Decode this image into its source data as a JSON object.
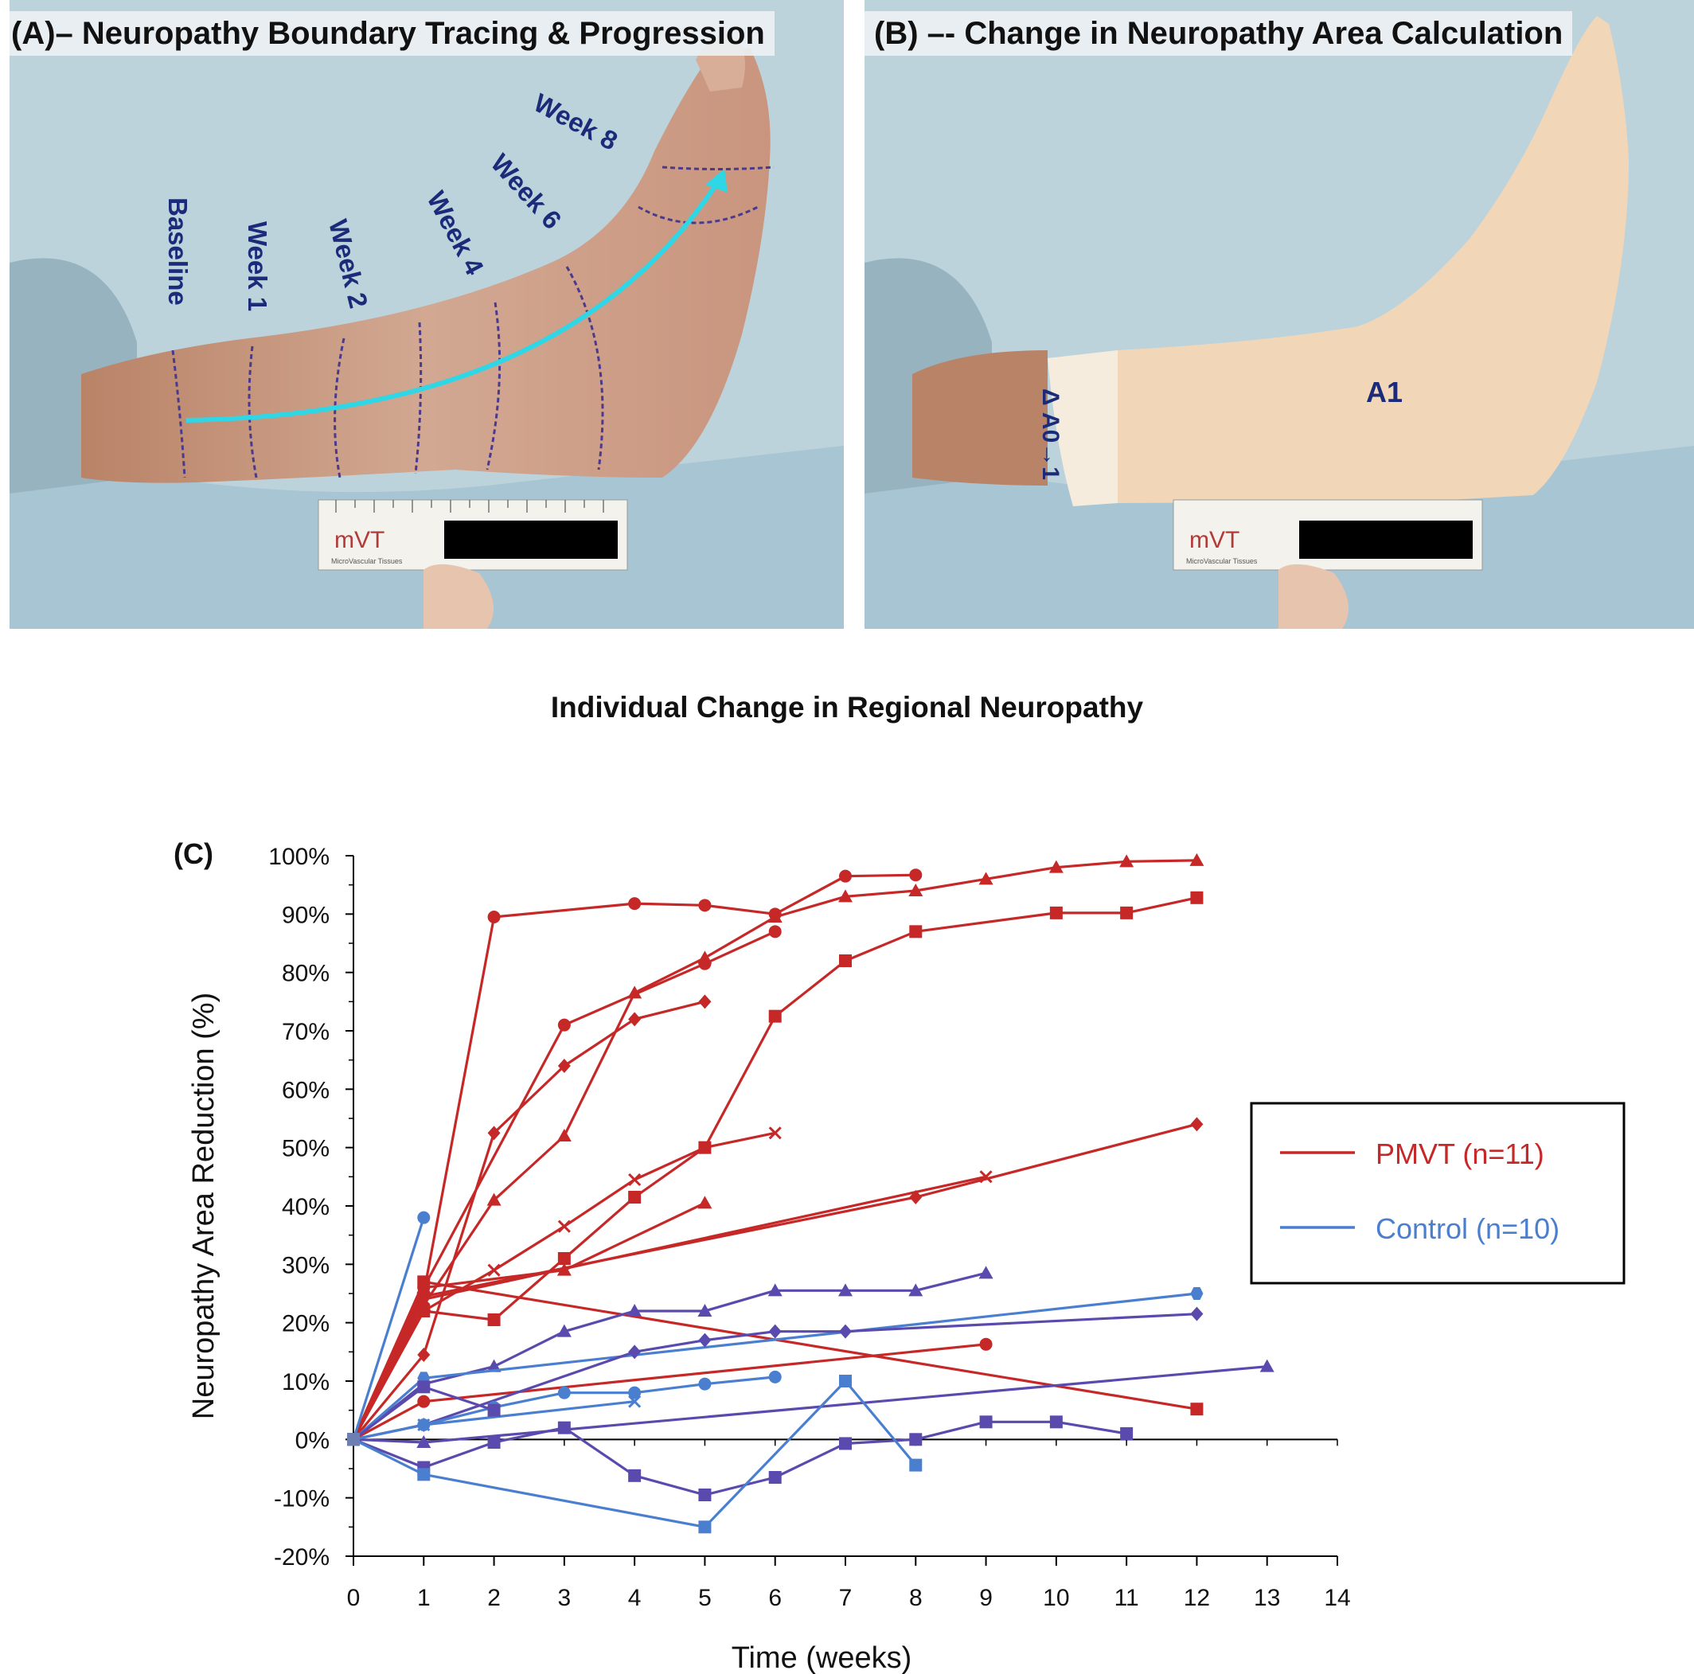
{
  "panel_a": {
    "title": "(A)– Neuropathy Boundary Tracing & Progression",
    "labels": [
      "Baseline",
      "Week 1",
      "Week 2",
      "Week 4",
      "Week 6",
      "Week 8"
    ],
    "ruler_brand": "mVT",
    "ruler_sub": "MicroVascular Tissues"
  },
  "panel_b": {
    "title": "(B) –- Change in Neuropathy Area Calculation",
    "delta_label": "Δ A0→1",
    "area_label": "A1",
    "ruler_brand": "mVT",
    "ruler_sub": "MicroVascular Tissues"
  },
  "colors": {
    "pmvt": "#c62828",
    "control": "#4a7fd0",
    "control_alt": "#5a4aae",
    "arrow": "#2fd6e6"
  },
  "chart_data": {
    "type": "line",
    "title": "Individual Change in Regional Neuropathy",
    "panel_label": "(C)",
    "xlabel": "Time (weeks)",
    "ylabel": "Neuropathy Area Reduction (%)",
    "xlim": [
      0,
      14
    ],
    "ylim": [
      -20,
      100
    ],
    "xticks": [
      0,
      1,
      2,
      3,
      4,
      5,
      6,
      7,
      8,
      9,
      10,
      11,
      12,
      13,
      14
    ],
    "yticks": [
      -20,
      -10,
      0,
      10,
      20,
      30,
      40,
      50,
      60,
      70,
      80,
      90,
      100
    ],
    "ytick_labels": [
      "-20%",
      "-10%",
      "0%",
      "10%",
      "20%",
      "30%",
      "40%",
      "50%",
      "60%",
      "70%",
      "80%",
      "90%",
      "100%"
    ],
    "grid": false,
    "legend": {
      "position": "right",
      "entries": [
        {
          "label": "PMVT (n=11)",
          "color": "#c62828"
        },
        {
          "label": "Control (n=10)",
          "color": "#4a7fd0"
        }
      ]
    },
    "series": [
      {
        "group": "PMVT",
        "marker": "circle",
        "x": [
          0,
          1,
          2,
          4,
          5,
          6,
          7,
          8
        ],
        "y": [
          0,
          25,
          89.5,
          91.8,
          91.5,
          90,
          96.5,
          96.7
        ]
      },
      {
        "group": "PMVT",
        "marker": "triangle",
        "x": [
          0,
          1,
          2,
          3,
          4,
          5,
          6,
          7,
          8,
          9,
          10,
          11,
          12
        ],
        "y": [
          0,
          23,
          41,
          52,
          76.5,
          82.5,
          89.5,
          93,
          94,
          96,
          98,
          99,
          99.2
        ]
      },
      {
        "group": "PMVT",
        "marker": "square",
        "x": [
          0,
          1,
          2,
          3,
          4,
          5,
          6,
          7,
          8,
          10,
          11,
          12
        ],
        "y": [
          0,
          22,
          20.5,
          31,
          41.5,
          50,
          72.5,
          82,
          87,
          90.2,
          90.2,
          92.8
        ]
      },
      {
        "group": "PMVT",
        "marker": "circle",
        "x": [
          0,
          1,
          3,
          5,
          6
        ],
        "y": [
          0,
          26,
          71,
          81.5,
          87
        ]
      },
      {
        "group": "PMVT",
        "marker": "diamond",
        "x": [
          0,
          1,
          2,
          3,
          4,
          5
        ],
        "y": [
          0,
          14.5,
          52.5,
          64,
          72,
          75
        ]
      },
      {
        "group": "PMVT",
        "marker": "x",
        "x": [
          0,
          1,
          2,
          3,
          4,
          5,
          6
        ],
        "y": [
          0,
          22,
          29,
          36.5,
          44.5,
          50,
          52.5
        ]
      },
      {
        "group": "PMVT",
        "marker": "triangle",
        "x": [
          0,
          1,
          3,
          5
        ],
        "y": [
          0,
          26,
          29,
          40.5
        ]
      },
      {
        "group": "PMVT",
        "marker": "diamond",
        "x": [
          0,
          1,
          8,
          12
        ],
        "y": [
          0,
          24.5,
          41.5,
          54
        ]
      },
      {
        "group": "PMVT",
        "marker": "x",
        "x": [
          0,
          1,
          9
        ],
        "y": [
          0,
          24,
          45
        ]
      },
      {
        "group": "PMVT",
        "marker": "circle",
        "x": [
          0,
          1,
          9
        ],
        "y": [
          0,
          6.5,
          16.3
        ]
      },
      {
        "group": "PMVT",
        "marker": "square",
        "x": [
          0,
          1,
          12
        ],
        "y": [
          0,
          27,
          5.2
        ]
      },
      {
        "group": "Control",
        "marker": "circle",
        "x": [
          0,
          1
        ],
        "y": [
          0,
          38
        ]
      },
      {
        "group": "Control",
        "marker": "triangle",
        "x": [
          0,
          1,
          2,
          3,
          4,
          5,
          6,
          7,
          8,
          9
        ],
        "y": [
          0,
          9.5,
          12.5,
          18.5,
          22,
          22,
          25.5,
          25.5,
          25.5,
          28.5
        ]
      },
      {
        "group": "Control",
        "marker": "hexagon",
        "x": [
          0,
          1,
          12
        ],
        "y": [
          0,
          10.5,
          25
        ]
      },
      {
        "group": "Control",
        "marker": "diamond",
        "x": [
          0,
          1,
          4,
          5,
          6,
          7,
          12
        ],
        "y": [
          0,
          2.5,
          15,
          17,
          18.5,
          18.5,
          21.5
        ]
      },
      {
        "group": "Control",
        "marker": "circle",
        "x": [
          0,
          1,
          2,
          3,
          4,
          5,
          6
        ],
        "y": [
          0,
          2.5,
          5.5,
          8,
          8,
          9.5,
          10.7
        ]
      },
      {
        "group": "Control",
        "marker": "triangle",
        "x": [
          0,
          1,
          13
        ],
        "y": [
          0,
          -0.5,
          12.5
        ]
      },
      {
        "group": "Control",
        "marker": "x",
        "x": [
          0,
          1,
          4
        ],
        "y": [
          0,
          2.5,
          6.5
        ]
      },
      {
        "group": "Control",
        "marker": "square",
        "x": [
          0,
          1,
          2,
          3,
          4,
          5,
          6,
          7,
          8,
          9,
          10,
          11
        ],
        "y": [
          0,
          -4.8,
          -0.5,
          2,
          -6.2,
          -9.5,
          -6.5,
          -0.7,
          0,
          3,
          3,
          1
        ]
      },
      {
        "group": "Control",
        "marker": "square",
        "x": [
          0,
          1,
          5,
          7,
          8
        ],
        "y": [
          0,
          -6,
          -15,
          10,
          -4.4
        ]
      },
      {
        "group": "Control",
        "marker": "square",
        "x": [
          0,
          1,
          2
        ],
        "y": [
          0,
          9,
          5
        ]
      }
    ]
  }
}
